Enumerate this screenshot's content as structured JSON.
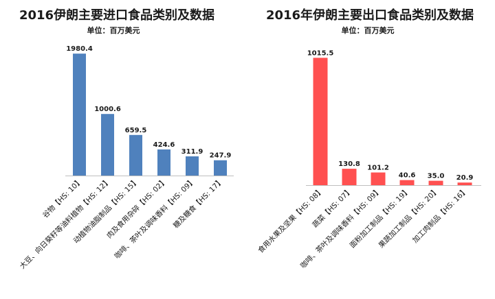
{
  "chart_data": [
    {
      "type": "bar",
      "title": "2016伊朗主要进口食品类别及数据",
      "subtitle": "单位：百万美元",
      "categories": [
        "谷物【HS: 10】",
        "大豆、向日葵籽等油料植物【HS: 12】",
        "动植物油脂制品【HS: 15】",
        "肉及食用杂碎【HS: 02】",
        "咖啡、茶叶及调味香料【HS: 09】",
        "糖及糖食【HS: 17】"
      ],
      "values": [
        1980.4,
        1000.6,
        659.5,
        424.6,
        311.9,
        247.9
      ],
      "value_labels": [
        "1980.4",
        "1000.6",
        "659.5",
        "424.6",
        "311.9",
        "247.9"
      ],
      "color": "#4f81bd",
      "ylim": [
        0,
        2050
      ],
      "grid": false
    },
    {
      "type": "bar",
      "title": "2016年伊朗主要出口食品类别及数据",
      "subtitle": "单位：百万美元",
      "categories": [
        "食用水果及坚果【HS: 08】",
        "蔬菜【HS: 07】",
        "咖啡、茶叶及调味香料【HS: 09】",
        "面粉加工制品【HS: 19】",
        "果蔬加工制品【HS: 20】",
        "加工肉制品【HS: 16】"
      ],
      "values": [
        1015.5,
        130.8,
        101.2,
        40.6,
        35.0,
        20.9
      ],
      "value_labels": [
        "1015.5",
        "130.8",
        "101.2",
        "40.6",
        "35.0",
        "20.9"
      ],
      "color": "#ff5050",
      "ylim": [
        0,
        1050
      ],
      "grid": false
    }
  ]
}
